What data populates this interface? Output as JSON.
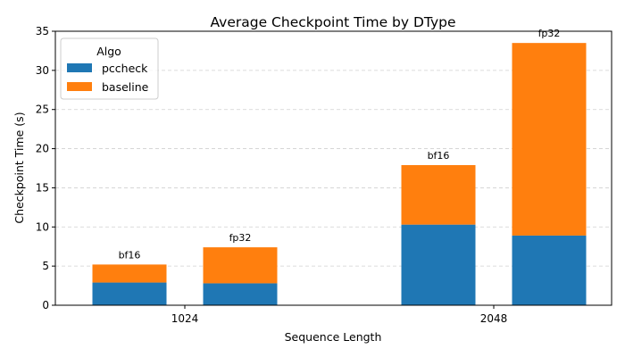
{
  "chart_data": {
    "type": "bar",
    "stacked": true,
    "title": "Average Checkpoint Time by DType",
    "xlabel": "Sequence Length",
    "ylabel": "Checkpoint Time (s)",
    "ylim": [
      0,
      35
    ],
    "yticks": [
      0,
      5,
      10,
      15,
      20,
      25,
      30,
      35
    ],
    "grid": "y-dashed",
    "legend": {
      "title": "Algo",
      "placement": "top-left",
      "entries": [
        {
          "name": "pccheck",
          "color": "#1f77b4"
        },
        {
          "name": "baseline",
          "color": "#ff7f0e"
        }
      ]
    },
    "categories": [
      "1024",
      "2048"
    ],
    "groups": [
      {
        "category": "1024",
        "bars": [
          {
            "dtype": "bf16",
            "pccheck": 2.9,
            "baseline": 2.3
          },
          {
            "dtype": "fp32",
            "pccheck": 2.8,
            "baseline": 4.6
          }
        ]
      },
      {
        "category": "2048",
        "bars": [
          {
            "dtype": "bf16",
            "pccheck": 10.3,
            "baseline": 7.6
          },
          {
            "dtype": "fp32",
            "pccheck": 8.9,
            "baseline": 24.6
          }
        ]
      }
    ],
    "series": [
      {
        "name": "pccheck",
        "color": "#1f77b4",
        "values": [
          [
            2.9,
            2.8
          ],
          [
            10.3,
            8.9
          ]
        ]
      },
      {
        "name": "baseline",
        "color": "#ff7f0e",
        "values": [
          [
            2.3,
            4.6
          ],
          [
            7.6,
            24.6
          ]
        ]
      }
    ]
  }
}
